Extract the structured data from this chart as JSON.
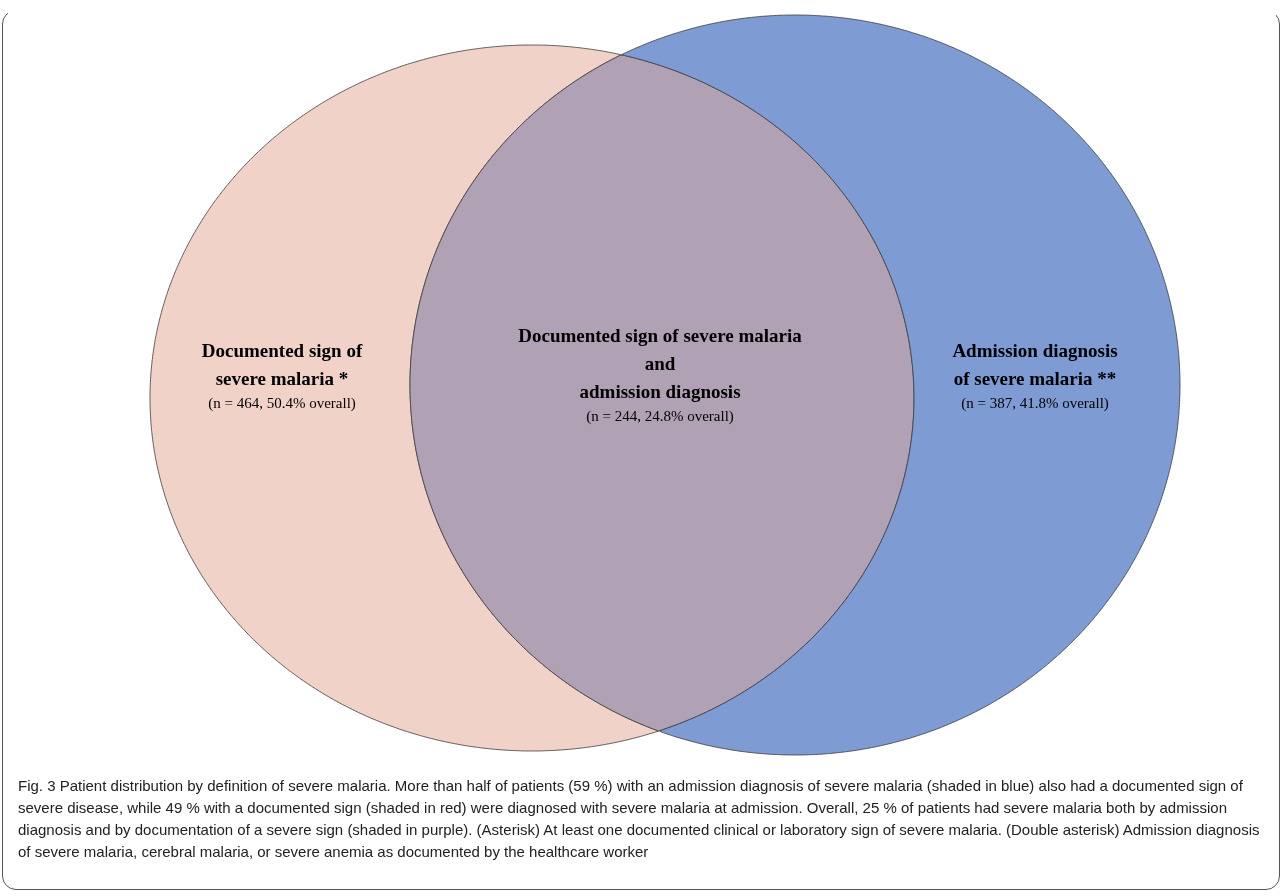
{
  "chart_data": {
    "type": "other",
    "categories": [
      "Documented sign of\nsevere malaria *",
      "Documented sign of severe malaria\nand\nadmission diagnosis",
      "Admission diagnosis\nof severe malaria **"
    ],
    "values": [
      464,
      244,
      387
    ],
    "value_labels": [
      "(n = 464, 50.4% overall)",
      "(n = 244, 24.8% overall)",
      "(n = 387, 41.8% overall)"
    ],
    "colors": [
      "#f0d2c9",
      "#b0a1b4",
      "#7f9bd4"
    ],
    "annotations": [
      "Fig. 3  Patient distribution by definition of severe malaria. More than half of patients (59 %) with an admission diagnosis of severe malaria (shaded in blue) also had a documented sign of severe disease, while 49 % with a documented sign (shaded in red) were diagnosed with severe malaria at admission. Overall, 25 % of patients had severe malaria both by admission diagnosis and by documentation of a severe sign (shaded in purple). (Asterisk) At least one documented clinical or laboratory sign of severe malaria. (Double asterisk) Admission diagnosis of severe malaria, cerebral malaria, or severe anemia as documented by the healthcare worker"
    ]
  }
}
